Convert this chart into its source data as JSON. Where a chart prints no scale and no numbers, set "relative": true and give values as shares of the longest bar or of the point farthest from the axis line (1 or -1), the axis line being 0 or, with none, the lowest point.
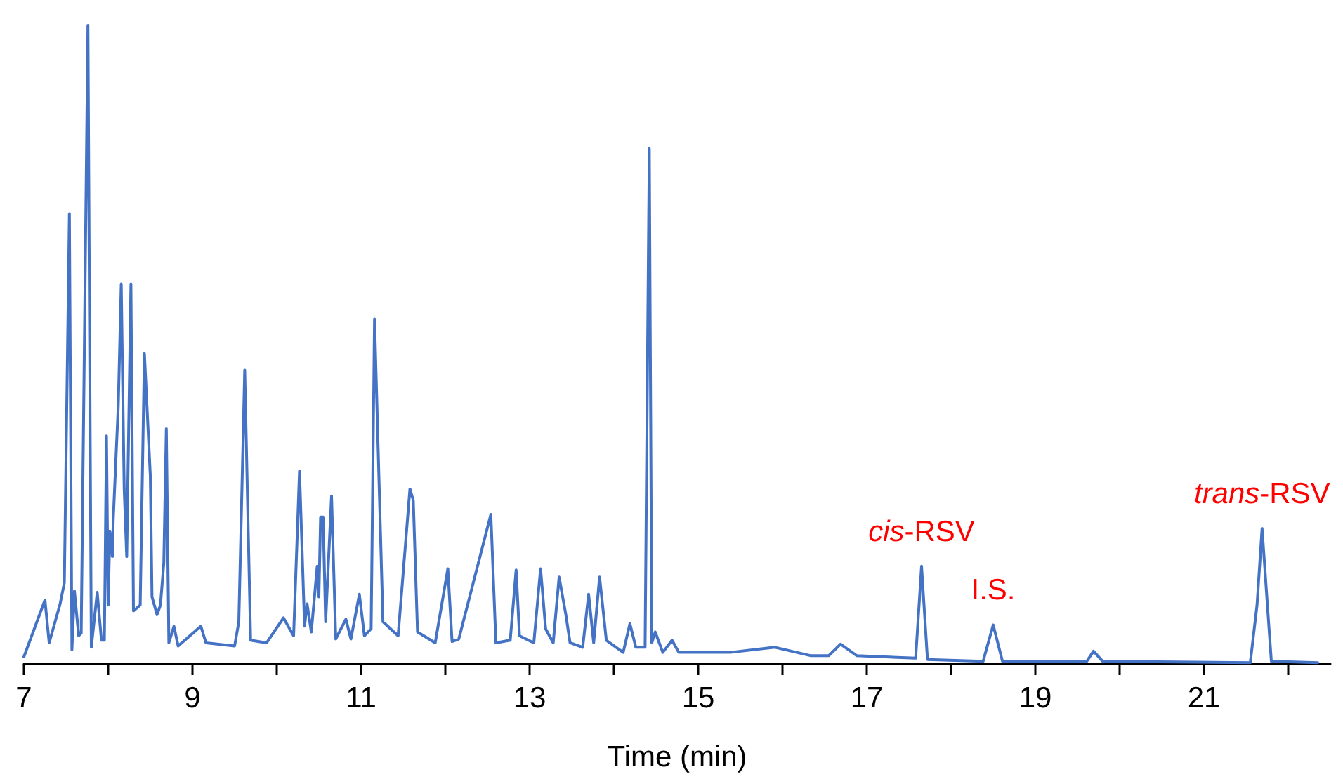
{
  "chart_data": {
    "type": "line",
    "relative": true,
    "xlabel": "Time (min)",
    "xlim": [
      7,
      22.5
    ],
    "xticks": [
      7,
      {
        "value": 8,
        "label": null
      },
      9,
      {
        "value": 10,
        "label": null
      },
      11,
      {
        "value": 12,
        "label": null
      },
      13,
      {
        "value": 14,
        "label": null
      },
      15,
      {
        "value": 16,
        "label": null
      },
      17,
      {
        "value": 18,
        "label": null
      },
      19,
      {
        "value": 20,
        "label": null
      },
      21,
      {
        "value": 22,
        "label": null
      }
    ],
    "marker": "none",
    "line_style": "solid",
    "annotations": [
      {
        "text": "cis-RSV",
        "x": 17.65,
        "y": 0.153
      },
      {
        "text": "I.S.",
        "x": 18.5,
        "y": 0.061
      },
      {
        "text": "trans-RSV",
        "x": 21.69,
        "y": 0.212
      }
    ],
    "series": [
      {
        "color": "#4472c4",
        "x": [
          7.0,
          7.25,
          7.3,
          7.43,
          7.48,
          7.54,
          7.57,
          7.6,
          7.65,
          7.68,
          7.76,
          7.8,
          7.87,
          7.92,
          7.955,
          7.98,
          8.0,
          8.02,
          8.05,
          8.06,
          8.12,
          8.155,
          8.19,
          8.22,
          8.27,
          8.3,
          8.38,
          8.43,
          8.5,
          8.52,
          8.58,
          8.62,
          8.66,
          8.69,
          8.72,
          8.78,
          8.83,
          9.1,
          9.16,
          9.5,
          9.55,
          9.62,
          9.69,
          9.88,
          10.08,
          10.2,
          10.27,
          10.33,
          10.36,
          10.41,
          10.48,
          10.5,
          10.52,
          10.55,
          10.58,
          10.65,
          10.7,
          10.82,
          10.88,
          10.98,
          11.04,
          11.12,
          11.16,
          11.26,
          11.44,
          11.58,
          11.62,
          11.67,
          11.88,
          12.03,
          12.08,
          12.16,
          12.54,
          12.6,
          12.77,
          12.84,
          12.88,
          13.05,
          13.13,
          13.19,
          13.28,
          13.35,
          13.43,
          13.48,
          13.63,
          13.7,
          13.76,
          13.83,
          13.91,
          14.11,
          14.19,
          14.26,
          14.37,
          14.42,
          14.45,
          14.49,
          14.58,
          14.69,
          14.77,
          15.38,
          15.91,
          16.33,
          16.55,
          16.69,
          16.88,
          17.22,
          17.58,
          17.65,
          17.72,
          18.38,
          18.5,
          18.61,
          19.61,
          19.69,
          19.8,
          21.55,
          21.63,
          21.69,
          21.75,
          21.8,
          22.35
        ],
        "values": [
          0.011,
          0.1,
          0.033,
          0.094,
          0.127,
          0.705,
          0.022,
          0.114,
          0.044,
          0.048,
          1.0,
          0.026,
          0.112,
          0.037,
          0.037,
          0.357,
          0.092,
          0.208,
          0.168,
          0.225,
          0.405,
          0.595,
          0.274,
          0.168,
          0.595,
          0.083,
          0.092,
          0.486,
          0.295,
          0.105,
          0.077,
          0.092,
          0.158,
          0.368,
          0.033,
          0.059,
          0.028,
          0.059,
          0.033,
          0.028,
          0.066,
          0.46,
          0.037,
          0.033,
          0.072,
          0.044,
          0.302,
          0.059,
          0.094,
          0.05,
          0.153,
          0.105,
          0.23,
          0.23,
          0.066,
          0.263,
          0.039,
          0.07,
          0.039,
          0.109,
          0.044,
          0.055,
          0.54,
          0.066,
          0.044,
          0.274,
          0.256,
          0.05,
          0.033,
          0.149,
          0.035,
          0.039,
          0.234,
          0.033,
          0.037,
          0.147,
          0.044,
          0.033,
          0.149,
          0.055,
          0.033,
          0.136,
          0.077,
          0.033,
          0.026,
          0.109,
          0.033,
          0.136,
          0.037,
          0.018,
          0.063,
          0.026,
          0.026,
          0.807,
          0.033,
          0.05,
          0.018,
          0.037,
          0.018,
          0.018,
          0.026,
          0.013,
          0.013,
          0.031,
          0.013,
          0.011,
          0.009,
          0.153,
          0.007,
          0.004,
          0.061,
          0.004,
          0.004,
          0.02,
          0.004,
          0.002,
          0.092,
          0.212,
          0.098,
          0.004,
          0.002
        ]
      }
    ]
  }
}
